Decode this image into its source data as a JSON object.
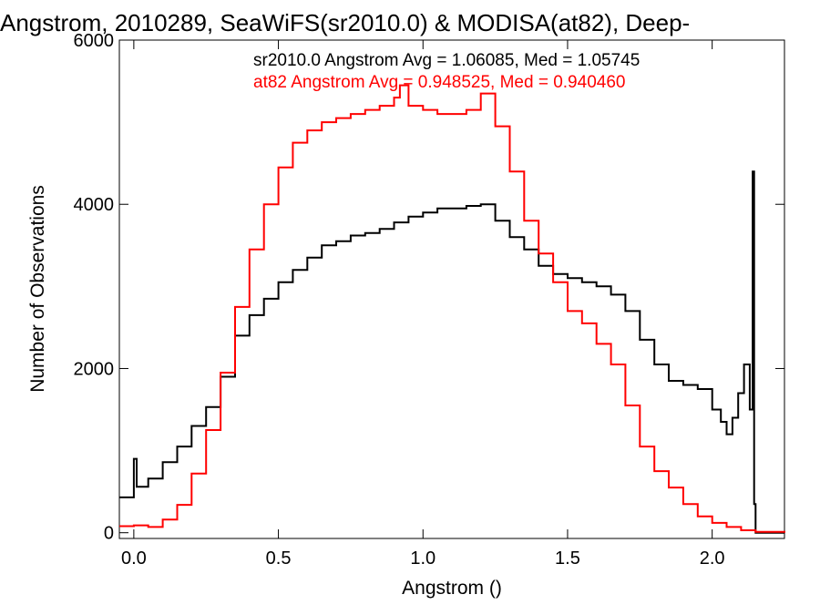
{
  "chart_data": {
    "type": "line",
    "title": "Angstrom, 2010289, SeaWiFS(sr2010.0) & MODISA(at82), Deep-",
    "xlabel": "Angstrom ()",
    "ylabel": "Number of Observations",
    "xlim": [
      -0.05,
      2.25
    ],
    "ylim": [
      -70,
      6000
    ],
    "x_ticks": [
      0.0,
      0.5,
      1.0,
      1.5,
      2.0
    ],
    "x_tick_labels": [
      "0.0",
      "0.5",
      "1.0",
      "1.5",
      "2.0"
    ],
    "y_ticks": [
      0,
      2000,
      4000,
      6000
    ],
    "y_tick_labels": [
      "0",
      "2000",
      "4000",
      "6000"
    ],
    "grid": false,
    "legend_placement": "top-right",
    "annotations": [
      {
        "text": "sr2010.0 Angstrom Avg = 1.06085, Med = 1.05745",
        "color": "#000000"
      },
      {
        "text": "at82 Angstrom Avg = 0.948525, Med = 0.940460",
        "color": "#ff0000"
      }
    ],
    "series": [
      {
        "color": "#000000",
        "points": [
          [
            -0.05,
            430
          ],
          [
            0.0,
            520
          ],
          [
            0.0,
            900
          ],
          [
            0.01,
            560
          ],
          [
            0.05,
            660
          ],
          [
            0.1,
            860
          ],
          [
            0.15,
            1050
          ],
          [
            0.2,
            1300
          ],
          [
            0.25,
            1530
          ],
          [
            0.3,
            1900
          ],
          [
            0.35,
            2400
          ],
          [
            0.4,
            2650
          ],
          [
            0.45,
            2850
          ],
          [
            0.5,
            3050
          ],
          [
            0.55,
            3200
          ],
          [
            0.6,
            3350
          ],
          [
            0.65,
            3500
          ],
          [
            0.7,
            3550
          ],
          [
            0.75,
            3620
          ],
          [
            0.8,
            3650
          ],
          [
            0.85,
            3700
          ],
          [
            0.9,
            3780
          ],
          [
            0.95,
            3850
          ],
          [
            1.0,
            3900
          ],
          [
            1.05,
            3950
          ],
          [
            1.1,
            3950
          ],
          [
            1.15,
            3980
          ],
          [
            1.2,
            4000
          ],
          [
            1.25,
            3800
          ],
          [
            1.3,
            3600
          ],
          [
            1.35,
            3450
          ],
          [
            1.4,
            3250
          ],
          [
            1.45,
            3150
          ],
          [
            1.5,
            3100
          ],
          [
            1.55,
            3050
          ],
          [
            1.6,
            3000
          ],
          [
            1.65,
            2900
          ],
          [
            1.7,
            2700
          ],
          [
            1.75,
            2350
          ],
          [
            1.8,
            2050
          ],
          [
            1.85,
            1850
          ],
          [
            1.9,
            1800
          ],
          [
            1.95,
            1750
          ],
          [
            2.0,
            1500
          ],
          [
            2.03,
            1350
          ],
          [
            2.05,
            1200
          ],
          [
            2.07,
            1400
          ],
          [
            2.09,
            1700
          ],
          [
            2.11,
            2050
          ],
          [
            2.13,
            1500
          ],
          [
            2.14,
            4400
          ],
          [
            2.145,
            350
          ],
          [
            2.15,
            0
          ],
          [
            2.25,
            0
          ]
        ]
      },
      {
        "color": "#ff0000",
        "points": [
          [
            -0.05,
            80
          ],
          [
            0.0,
            90
          ],
          [
            0.05,
            70
          ],
          [
            0.1,
            160
          ],
          [
            0.15,
            340
          ],
          [
            0.2,
            720
          ],
          [
            0.25,
            1250
          ],
          [
            0.3,
            1950
          ],
          [
            0.35,
            2750
          ],
          [
            0.4,
            3450
          ],
          [
            0.45,
            4000
          ],
          [
            0.5,
            4450
          ],
          [
            0.55,
            4750
          ],
          [
            0.6,
            4900
          ],
          [
            0.65,
            5000
          ],
          [
            0.7,
            5050
          ],
          [
            0.75,
            5100
          ],
          [
            0.8,
            5150
          ],
          [
            0.85,
            5200
          ],
          [
            0.9,
            5300
          ],
          [
            0.92,
            5450
          ],
          [
            0.95,
            5200
          ],
          [
            1.0,
            5150
          ],
          [
            1.05,
            5100
          ],
          [
            1.1,
            5100
          ],
          [
            1.15,
            5150
          ],
          [
            1.2,
            5350
          ],
          [
            1.25,
            4950
          ],
          [
            1.3,
            4400
          ],
          [
            1.35,
            3800
          ],
          [
            1.4,
            3400
          ],
          [
            1.45,
            3050
          ],
          [
            1.5,
            2700
          ],
          [
            1.55,
            2550
          ],
          [
            1.6,
            2300
          ],
          [
            1.65,
            2050
          ],
          [
            1.7,
            1550
          ],
          [
            1.75,
            1050
          ],
          [
            1.8,
            750
          ],
          [
            1.85,
            550
          ],
          [
            1.9,
            350
          ],
          [
            1.95,
            200
          ],
          [
            2.0,
            120
          ],
          [
            2.05,
            70
          ],
          [
            2.1,
            30
          ],
          [
            2.15,
            10
          ],
          [
            2.25,
            0
          ]
        ]
      }
    ]
  }
}
